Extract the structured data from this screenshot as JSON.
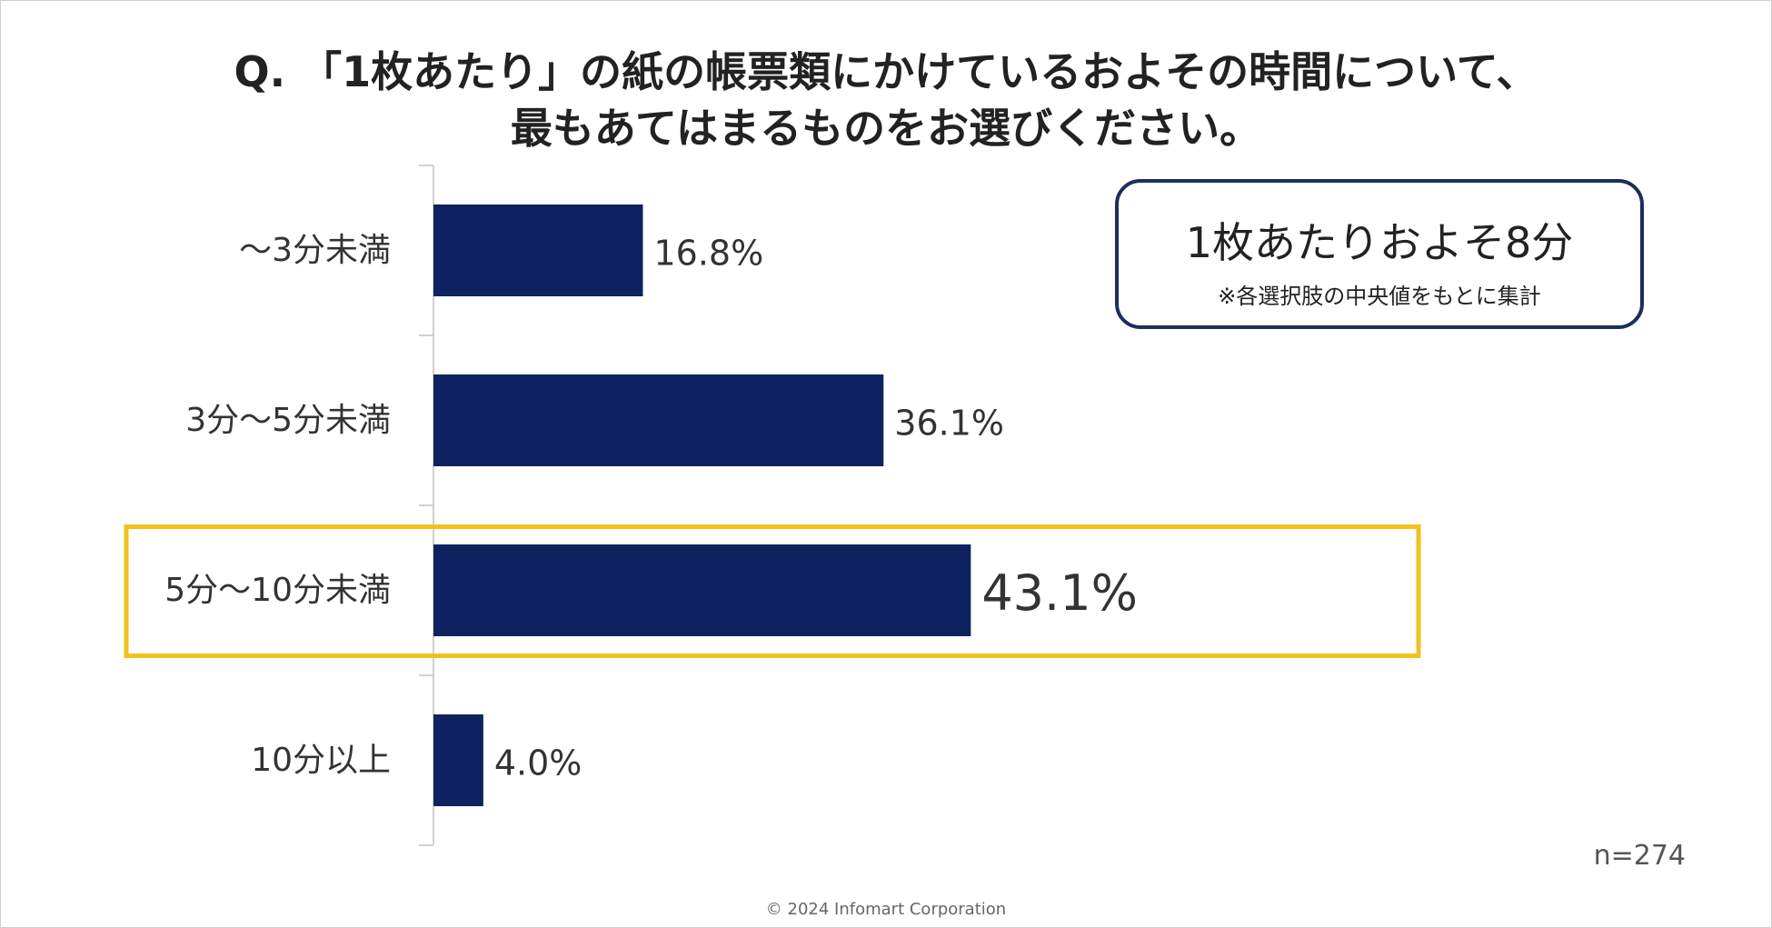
{
  "title": {
    "line1": "Q. 「1枚あたり」の紙の帳票類にかけているおよその時間について、",
    "line2": "最もあてはまるものをお選びください。"
  },
  "chart_data": {
    "type": "bar",
    "orientation": "horizontal",
    "categories": [
      "〜3分未満",
      "3分〜5分未満",
      "5分〜10分未満",
      "10分以上"
    ],
    "values": [
      16.8,
      36.1,
      43.1,
      4.0
    ],
    "value_labels": [
      "16.8%",
      "36.1%",
      "43.1%",
      "4.0%"
    ],
    "highlight_index": 2,
    "xlim": [
      0,
      50
    ],
    "grid": false,
    "colors": {
      "bar": "#0f2260",
      "highlight_border": "#f2c21b",
      "axis": "#d0d0d0",
      "label": "#333333"
    }
  },
  "callout": {
    "main": "1枚あたりおよそ8分",
    "note": "※各選択肢の中央値をもとに集計"
  },
  "sample_size": "n=274",
  "copyright": "© 2024 Infomart Corporation"
}
